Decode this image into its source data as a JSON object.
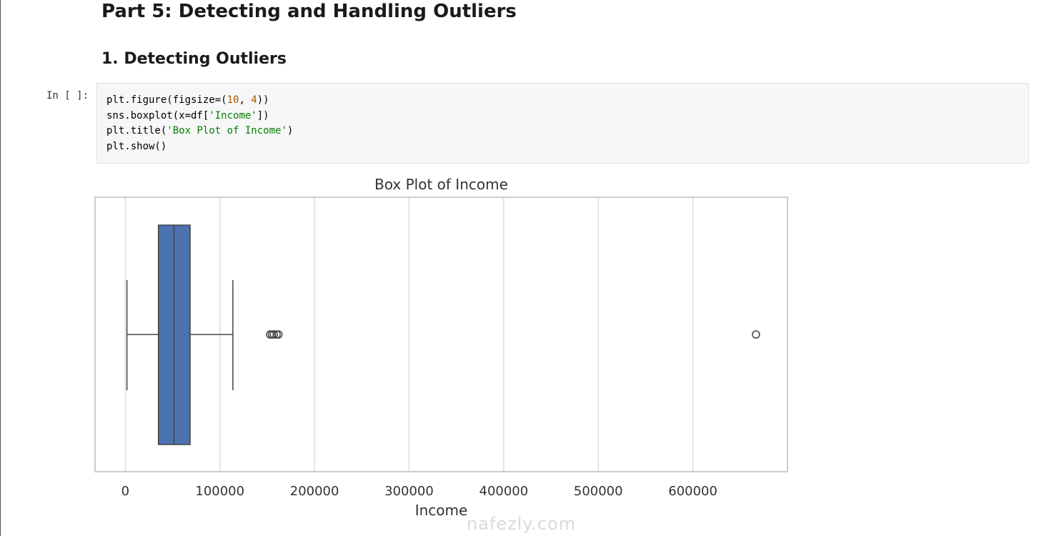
{
  "notebook": {
    "part_heading": "Part 5: Detecting and Handling Outliers",
    "section_heading": "1. Detecting Outliers",
    "cell_prompt": "In [ ]:",
    "code": {
      "line1_a": "plt.figure(figsize=(",
      "line1_n1": "10",
      "line1_b": ", ",
      "line1_n2": "4",
      "line1_c": "))",
      "line2_a": "sns.boxplot(x=df[",
      "line2_s": "'Income'",
      "line2_c": "])",
      "line3_a": "plt.title(",
      "line3_s": "'Box Plot of Income'",
      "line3_c": ")",
      "line4": "plt.show()"
    }
  },
  "colors": {
    "box_fill": "#4c72b0",
    "grid": "#dcdcdc",
    "frame": "#cccccc",
    "whisker": "#444444",
    "string": "#008000",
    "number": "#aa5500"
  },
  "chart_data": {
    "type": "box",
    "title": "Box Plot of Income",
    "xlabel": "Income",
    "xlim": [
      -32000,
      700000
    ],
    "xticks": [
      0,
      100000,
      200000,
      300000,
      400000,
      500000,
      600000
    ],
    "xtick_labels": [
      "0",
      "100000",
      "200000",
      "300000",
      "400000",
      "500000",
      "600000"
    ],
    "grid": true,
    "box": {
      "whisker_low": 1730,
      "q1": 35000,
      "median": 51500,
      "q3": 68500,
      "whisker_high": 113700
    },
    "outliers": [
      153000,
      155000,
      157000,
      160000,
      162000,
      666666
    ]
  },
  "watermark": "nafezly.com"
}
